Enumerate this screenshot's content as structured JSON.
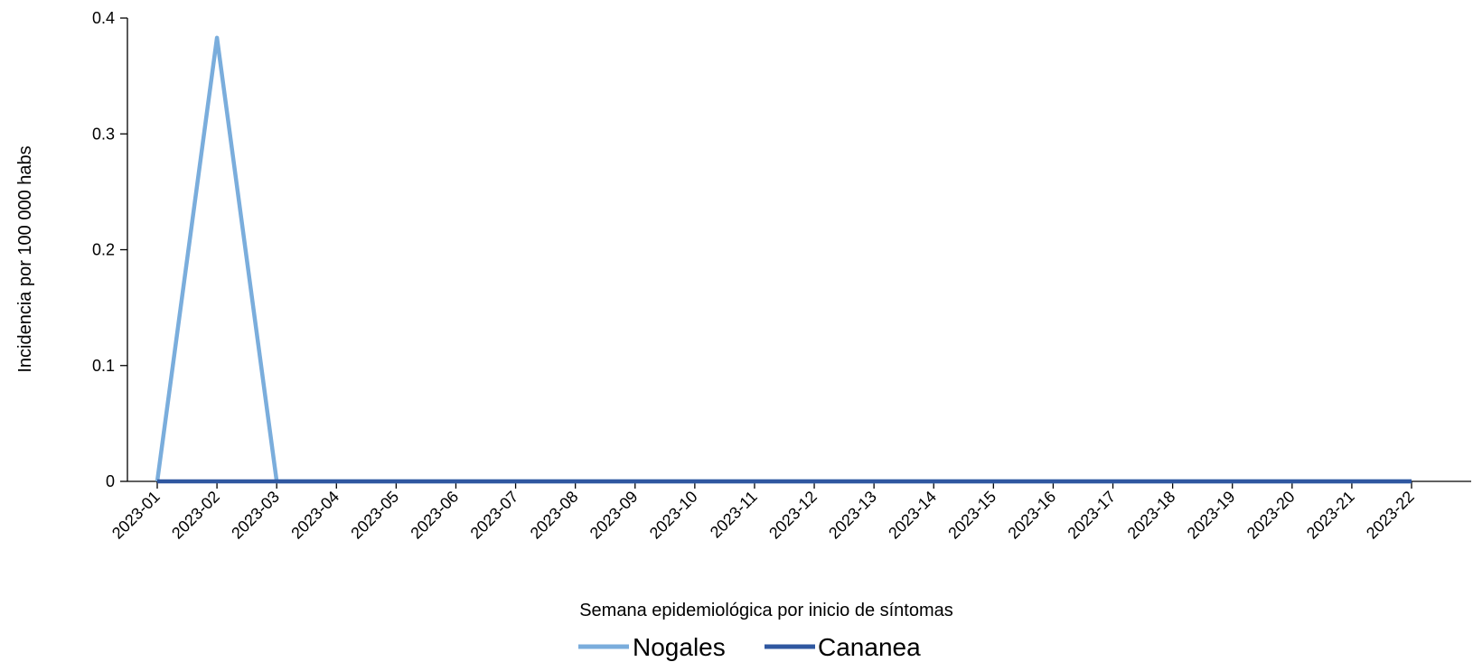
{
  "chart_data": {
    "type": "line",
    "xlabel": "Semana epidemiológica  por inicio de síntomas",
    "ylabel": "Incidencia  por 100 000 habs",
    "categories": [
      "2023-01",
      "2023-02",
      "2023-03",
      "2023-04",
      "2023-05",
      "2023-06",
      "2023-07",
      "2023-08",
      "2023-09",
      "2023-10",
      "2023-11",
      "2023-12",
      "2023-13",
      "2023-14",
      "2023-15",
      "2023-16",
      "2023-17",
      "2023-18",
      "2023-19",
      "2023-20",
      "2023-21",
      "2023-22"
    ],
    "ylim": [
      0,
      0.4
    ],
    "yticks": [
      "0",
      "0.1",
      "0.2",
      "0.3",
      "0.4"
    ],
    "grid": false,
    "legend_position": "bottom",
    "series": [
      {
        "name": "Nogales",
        "color": "#7aaddc",
        "values": [
          0,
          0.383,
          0,
          0,
          0,
          0,
          0,
          0,
          0,
          0,
          0,
          0,
          0,
          0,
          0,
          0,
          0,
          0,
          0,
          0,
          0,
          0
        ]
      },
      {
        "name": "Cananea",
        "color": "#2f57a0",
        "values": [
          0,
          0,
          0,
          0,
          0,
          0,
          0,
          0,
          0,
          0,
          0,
          0,
          0,
          0,
          0,
          0,
          0,
          0,
          0,
          0,
          0,
          0
        ]
      }
    ]
  }
}
